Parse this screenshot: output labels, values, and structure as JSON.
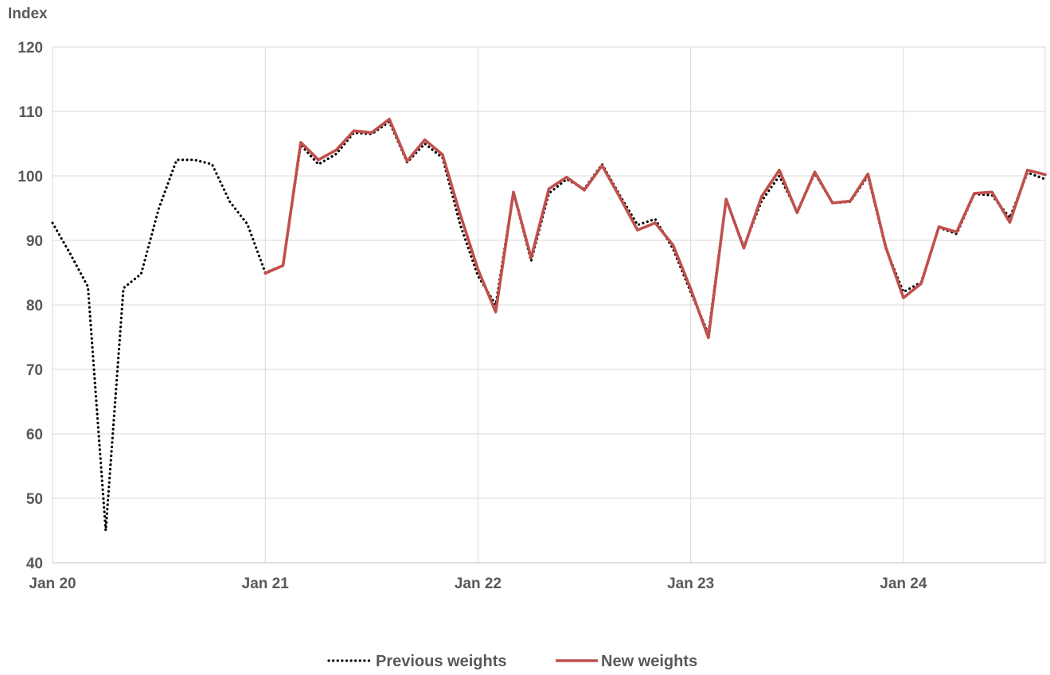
{
  "chart_data": {
    "type": "line",
    "ylabel": "Index",
    "ylim": [
      40,
      120
    ],
    "yticks": [
      40,
      50,
      60,
      70,
      80,
      90,
      100,
      110,
      120
    ],
    "xlim": [
      "2020-01",
      "2024-09"
    ],
    "xticks": [
      {
        "date": "2020-01",
        "label": "Jan 20"
      },
      {
        "date": "2021-01",
        "label": "Jan 21"
      },
      {
        "date": "2022-01",
        "label": "Jan 22"
      },
      {
        "date": "2023-01",
        "label": "Jan 23"
      },
      {
        "date": "2024-01",
        "label": "Jan 24"
      }
    ],
    "grid": true,
    "legend_position": "bottom",
    "x": [
      "2020-01",
      "2020-02",
      "2020-03",
      "2020-04",
      "2020-05",
      "2020-06",
      "2020-07",
      "2020-08",
      "2020-09",
      "2020-10",
      "2020-11",
      "2020-12",
      "2021-01",
      "2021-02",
      "2021-03",
      "2021-04",
      "2021-05",
      "2021-06",
      "2021-07",
      "2021-08",
      "2021-09",
      "2021-10",
      "2021-11",
      "2021-12",
      "2022-01",
      "2022-02",
      "2022-03",
      "2022-04",
      "2022-05",
      "2022-06",
      "2022-07",
      "2022-08",
      "2022-09",
      "2022-10",
      "2022-11",
      "2022-12",
      "2023-01",
      "2023-02",
      "2023-03",
      "2023-04",
      "2023-05",
      "2023-06",
      "2023-07",
      "2023-08",
      "2023-09",
      "2023-10",
      "2023-11",
      "2023-12",
      "2024-01",
      "2024-02",
      "2024-03",
      "2024-04",
      "2024-05",
      "2024-06",
      "2024-07",
      "2024-08",
      "2024-09"
    ],
    "series": [
      {
        "name": "Previous weights",
        "color": "#000000",
        "style": "dotted",
        "values": [
          92.7,
          87.9,
          82.8,
          45.0,
          82.6,
          84.8,
          95.0,
          102.5,
          102.5,
          101.8,
          96.0,
          92.5,
          85.0,
          86.1,
          104.8,
          101.8,
          103.4,
          106.7,
          106.5,
          108.4,
          102.1,
          105.0,
          102.8,
          92.4,
          84.5,
          80.0,
          97.5,
          86.8,
          97.3,
          99.5,
          98.0,
          101.8,
          97.0,
          92.4,
          93.3,
          88.7,
          82.0,
          75.5,
          96.4,
          89.0,
          96.1,
          100.0,
          94.5,
          100.4,
          95.8,
          96.0,
          100.0,
          88.8,
          82.0,
          83.5,
          92.0,
          91.0,
          97.2,
          97.0,
          93.5,
          100.5,
          99.5
        ]
      },
      {
        "name": "New weights",
        "color": "#c0504d",
        "style": "solid",
        "values": [
          null,
          null,
          null,
          null,
          null,
          null,
          null,
          null,
          null,
          null,
          null,
          null,
          84.9,
          86.1,
          105.2,
          102.5,
          104.0,
          107.0,
          106.7,
          108.8,
          102.3,
          105.6,
          103.3,
          94.0,
          85.5,
          78.9,
          97.5,
          87.3,
          98.0,
          99.8,
          97.8,
          101.6,
          96.7,
          91.6,
          92.7,
          89.3,
          82.5,
          74.9,
          96.4,
          88.8,
          96.8,
          100.9,
          94.3,
          100.6,
          95.8,
          96.1,
          100.3,
          89.0,
          81.1,
          83.3,
          92.1,
          91.3,
          97.3,
          97.5,
          92.8,
          100.9,
          100.2
        ]
      }
    ]
  }
}
